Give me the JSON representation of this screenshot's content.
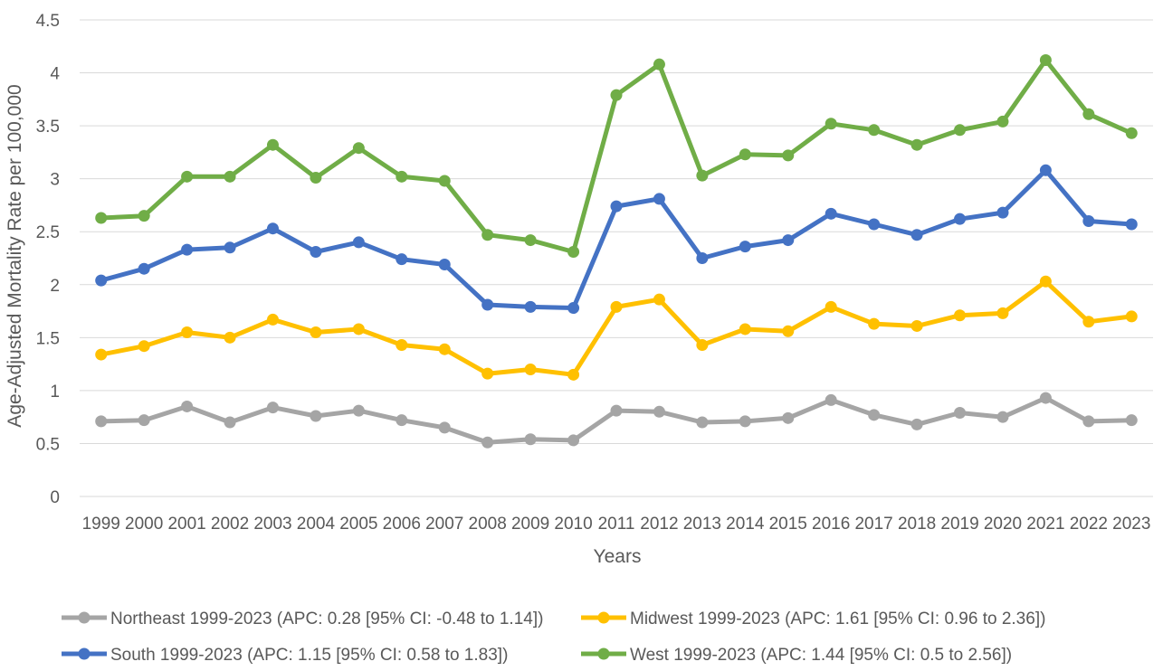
{
  "chart_data": {
    "type": "line",
    "title": "",
    "xlabel": "Years",
    "ylabel": "Age-Adjusted Mortality Rate per 100,000",
    "ylim": [
      0,
      4.5
    ],
    "yticks": [
      "0",
      "0.5",
      "1",
      "1.5",
      "2",
      "2.5",
      "3",
      "3.5",
      "4",
      "4.5"
    ],
    "grid": "horizontal",
    "legend_position": "bottom",
    "categories": [
      "1999",
      "2000",
      "2001",
      "2002",
      "2003",
      "2004",
      "2005",
      "2006",
      "2007",
      "2008",
      "2009",
      "2010",
      "2011",
      "2012",
      "2013",
      "2014",
      "2015",
      "2016",
      "2017",
      "2018",
      "2019",
      "2020",
      "2021",
      "2022",
      "2023"
    ],
    "series": [
      {
        "name": "Northeast 1999-2023 (APC: 0.28 [95% CI: -0.48 to 1.14])",
        "color": "#a5a5a5",
        "values": [
          0.71,
          0.72,
          0.85,
          0.7,
          0.84,
          0.76,
          0.81,
          0.72,
          0.65,
          0.51,
          0.54,
          0.53,
          0.81,
          0.8,
          0.7,
          0.71,
          0.74,
          0.91,
          0.77,
          0.68,
          0.79,
          0.75,
          0.93,
          0.71,
          0.72
        ]
      },
      {
        "name": "Midwest 1999-2023 (APC: 1.61 [95% CI: 0.96 to 2.36])",
        "color": "#ffc000",
        "values": [
          1.34,
          1.42,
          1.55,
          1.5,
          1.67,
          1.55,
          1.58,
          1.43,
          1.39,
          1.16,
          1.2,
          1.15,
          1.79,
          1.86,
          1.43,
          1.58,
          1.56,
          1.79,
          1.63,
          1.61,
          1.71,
          1.73,
          2.03,
          1.65,
          1.7
        ]
      },
      {
        "name": "South 1999-2023 (APC: 1.15 [95% CI: 0.58 to 1.83])",
        "color": "#4472c4",
        "values": [
          2.04,
          2.15,
          2.33,
          2.35,
          2.53,
          2.31,
          2.4,
          2.24,
          2.19,
          1.81,
          1.79,
          1.78,
          2.74,
          2.81,
          2.25,
          2.36,
          2.42,
          2.67,
          2.57,
          2.47,
          2.62,
          2.68,
          3.08,
          2.6,
          2.57
        ]
      },
      {
        "name": "West 1999-2023 (APC: 1.44 [95% CI: 0.5 to 2.56])",
        "color": "#70ad47",
        "values": [
          2.63,
          2.65,
          3.02,
          3.02,
          3.32,
          3.01,
          3.29,
          3.02,
          2.98,
          2.47,
          2.42,
          2.31,
          3.79,
          4.08,
          3.03,
          3.23,
          3.22,
          3.52,
          3.46,
          3.32,
          3.46,
          3.54,
          4.12,
          3.61,
          3.43
        ]
      }
    ]
  }
}
